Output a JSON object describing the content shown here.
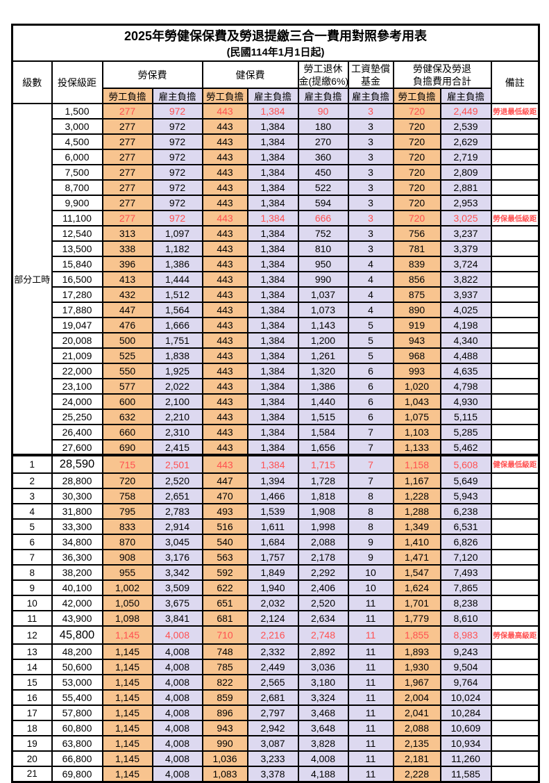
{
  "page": {
    "title": "2025年勞健保保費及勞退提繳三合一費用對照參考用表",
    "subtitle": "(民國114年1月1日起)"
  },
  "colors": {
    "employee_bg": "#F8C48F",
    "employer_bg": "#DDD9F0",
    "highlight_red": "#FF5050"
  },
  "header": {
    "level": "級數",
    "salary": "投保級距",
    "labor": "勞保費",
    "health": "健保費",
    "pension_line1": "勞工退休",
    "pension_line2": "金(提繳6%)",
    "wage_fund_line1": "工資墊償",
    "wage_fund_line2": "基金",
    "total_line1": "勞健保及勞退",
    "total_line2": "負擔費用合計",
    "remark": "備註",
    "employee": "勞工負擔",
    "employer": "雇主負擔"
  },
  "table": {
    "part_time_label": "部分工時",
    "rows": [
      {
        "level": "",
        "salary": "1,500",
        "values": [
          "277",
          "972",
          "443",
          "1,384",
          "90",
          "3",
          "720",
          "2,449"
        ],
        "remark": "勞退最低級距",
        "red": true,
        "big": false,
        "thick_top": false
      },
      {
        "level": "",
        "salary": "3,000",
        "values": [
          "277",
          "972",
          "443",
          "1,384",
          "180",
          "3",
          "720",
          "2,539"
        ],
        "remark": "",
        "red": false,
        "big": false,
        "thick_top": false
      },
      {
        "level": "",
        "salary": "4,500",
        "values": [
          "277",
          "972",
          "443",
          "1,384",
          "270",
          "3",
          "720",
          "2,629"
        ],
        "remark": "",
        "red": false,
        "big": false,
        "thick_top": false
      },
      {
        "level": "",
        "salary": "6,000",
        "values": [
          "277",
          "972",
          "443",
          "1,384",
          "360",
          "3",
          "720",
          "2,719"
        ],
        "remark": "",
        "red": false,
        "big": false,
        "thick_top": false
      },
      {
        "level": "",
        "salary": "7,500",
        "values": [
          "277",
          "972",
          "443",
          "1,384",
          "450",
          "3",
          "720",
          "2,809"
        ],
        "remark": "",
        "red": false,
        "big": false,
        "thick_top": false
      },
      {
        "level": "",
        "salary": "8,700",
        "values": [
          "277",
          "972",
          "443",
          "1,384",
          "522",
          "3",
          "720",
          "2,881"
        ],
        "remark": "",
        "red": false,
        "big": false,
        "thick_top": false
      },
      {
        "level": "",
        "salary": "9,900",
        "values": [
          "277",
          "972",
          "443",
          "1,384",
          "594",
          "3",
          "720",
          "2,953"
        ],
        "remark": "",
        "red": false,
        "big": false,
        "thick_top": false
      },
      {
        "level": "",
        "salary": "11,100",
        "values": [
          "277",
          "972",
          "443",
          "1,384",
          "666",
          "3",
          "720",
          "3,025"
        ],
        "remark": "勞保最低級距",
        "red": true,
        "big": false,
        "thick_top": false
      },
      {
        "level": "",
        "salary": "12,540",
        "values": [
          "313",
          "1,097",
          "443",
          "1,384",
          "752",
          "3",
          "756",
          "3,237"
        ],
        "remark": "",
        "red": false,
        "big": false,
        "thick_top": false
      },
      {
        "level": "",
        "salary": "13,500",
        "values": [
          "338",
          "1,182",
          "443",
          "1,384",
          "810",
          "3",
          "781",
          "3,379"
        ],
        "remark": "",
        "red": false,
        "big": false,
        "thick_top": false
      },
      {
        "level": "",
        "salary": "15,840",
        "values": [
          "396",
          "1,386",
          "443",
          "1,384",
          "950",
          "4",
          "839",
          "3,724"
        ],
        "remark": "",
        "red": false,
        "big": false,
        "thick_top": false
      },
      {
        "level": "",
        "salary": "16,500",
        "values": [
          "413",
          "1,444",
          "443",
          "1,384",
          "990",
          "4",
          "856",
          "3,822"
        ],
        "remark": "",
        "red": false,
        "big": false,
        "thick_top": false
      },
      {
        "level": "",
        "salary": "17,280",
        "values": [
          "432",
          "1,512",
          "443",
          "1,384",
          "1,037",
          "4",
          "875",
          "3,937"
        ],
        "remark": "",
        "red": false,
        "big": false,
        "thick_top": false
      },
      {
        "level": "",
        "salary": "17,880",
        "values": [
          "447",
          "1,564",
          "443",
          "1,384",
          "1,073",
          "4",
          "890",
          "4,025"
        ],
        "remark": "",
        "red": false,
        "big": false,
        "thick_top": false
      },
      {
        "level": "",
        "salary": "19,047",
        "values": [
          "476",
          "1,666",
          "443",
          "1,384",
          "1,143",
          "5",
          "919",
          "4,198"
        ],
        "remark": "",
        "red": false,
        "big": false,
        "thick_top": false
      },
      {
        "level": "",
        "salary": "20,008",
        "values": [
          "500",
          "1,751",
          "443",
          "1,384",
          "1,200",
          "5",
          "943",
          "4,340"
        ],
        "remark": "",
        "red": false,
        "big": false,
        "thick_top": false
      },
      {
        "level": "",
        "salary": "21,009",
        "values": [
          "525",
          "1,838",
          "443",
          "1,384",
          "1,261",
          "5",
          "968",
          "4,488"
        ],
        "remark": "",
        "red": false,
        "big": false,
        "thick_top": false
      },
      {
        "level": "",
        "salary": "22,000",
        "values": [
          "550",
          "1,925",
          "443",
          "1,384",
          "1,320",
          "6",
          "993",
          "4,635"
        ],
        "remark": "",
        "red": false,
        "big": false,
        "thick_top": false
      },
      {
        "level": "",
        "salary": "23,100",
        "values": [
          "577",
          "2,022",
          "443",
          "1,384",
          "1,386",
          "6",
          "1,020",
          "4,798"
        ],
        "remark": "",
        "red": false,
        "big": false,
        "thick_top": false
      },
      {
        "level": "",
        "salary": "24,000",
        "values": [
          "600",
          "2,100",
          "443",
          "1,384",
          "1,440",
          "6",
          "1,043",
          "4,930"
        ],
        "remark": "",
        "red": false,
        "big": false,
        "thick_top": false
      },
      {
        "level": "",
        "salary": "25,250",
        "values": [
          "632",
          "2,210",
          "443",
          "1,384",
          "1,515",
          "6",
          "1,075",
          "5,115"
        ],
        "remark": "",
        "red": false,
        "big": false,
        "thick_top": false
      },
      {
        "level": "",
        "salary": "26,400",
        "values": [
          "660",
          "2,310",
          "443",
          "1,384",
          "1,584",
          "7",
          "1,103",
          "5,285"
        ],
        "remark": "",
        "red": false,
        "big": false,
        "thick_top": false
      },
      {
        "level": "",
        "salary": "27,600",
        "values": [
          "690",
          "2,415",
          "443",
          "1,384",
          "1,656",
          "7",
          "1,133",
          "5,462"
        ],
        "remark": "",
        "red": false,
        "big": false,
        "thick_top": false
      },
      {
        "level": "1",
        "salary": "28,590",
        "values": [
          "715",
          "2,501",
          "443",
          "1,384",
          "1,715",
          "7",
          "1,158",
          "5,608"
        ],
        "remark": "健保最低級距",
        "red": true,
        "big": true,
        "thick_top": true
      },
      {
        "level": "2",
        "salary": "28,800",
        "values": [
          "720",
          "2,520",
          "447",
          "1,394",
          "1,728",
          "7",
          "1,167",
          "5,649"
        ],
        "remark": "",
        "red": false,
        "big": false,
        "thick_top": false
      },
      {
        "level": "3",
        "salary": "30,300",
        "values": [
          "758",
          "2,651",
          "470",
          "1,466",
          "1,818",
          "8",
          "1,228",
          "5,943"
        ],
        "remark": "",
        "red": false,
        "big": false,
        "thick_top": false
      },
      {
        "level": "4",
        "salary": "31,800",
        "values": [
          "795",
          "2,783",
          "493",
          "1,539",
          "1,908",
          "8",
          "1,288",
          "6,238"
        ],
        "remark": "",
        "red": false,
        "big": false,
        "thick_top": false
      },
      {
        "level": "5",
        "salary": "33,300",
        "values": [
          "833",
          "2,914",
          "516",
          "1,611",
          "1,998",
          "8",
          "1,349",
          "6,531"
        ],
        "remark": "",
        "red": false,
        "big": false,
        "thick_top": false
      },
      {
        "level": "6",
        "salary": "34,800",
        "values": [
          "870",
          "3,045",
          "540",
          "1,684",
          "2,088",
          "9",
          "1,410",
          "6,826"
        ],
        "remark": "",
        "red": false,
        "big": false,
        "thick_top": false
      },
      {
        "level": "7",
        "salary": "36,300",
        "values": [
          "908",
          "3,176",
          "563",
          "1,757",
          "2,178",
          "9",
          "1,471",
          "7,120"
        ],
        "remark": "",
        "red": false,
        "big": false,
        "thick_top": false
      },
      {
        "level": "8",
        "salary": "38,200",
        "values": [
          "955",
          "3,342",
          "592",
          "1,849",
          "2,292",
          "10",
          "1,547",
          "7,493"
        ],
        "remark": "",
        "red": false,
        "big": false,
        "thick_top": false
      },
      {
        "level": "9",
        "salary": "40,100",
        "values": [
          "1,002",
          "3,509",
          "622",
          "1,940",
          "2,406",
          "10",
          "1,624",
          "7,865"
        ],
        "remark": "",
        "red": false,
        "big": false,
        "thick_top": false
      },
      {
        "level": "10",
        "salary": "42,000",
        "values": [
          "1,050",
          "3,675",
          "651",
          "2,032",
          "2,520",
          "11",
          "1,701",
          "8,238"
        ],
        "remark": "",
        "red": false,
        "big": false,
        "thick_top": false
      },
      {
        "level": "11",
        "salary": "43,900",
        "values": [
          "1,098",
          "3,841",
          "681",
          "2,124",
          "2,634",
          "11",
          "1,779",
          "8,610"
        ],
        "remark": "",
        "red": false,
        "big": false,
        "thick_top": false
      },
      {
        "level": "12",
        "salary": "45,800",
        "values": [
          "1,145",
          "4,008",
          "710",
          "2,216",
          "2,748",
          "11",
          "1,855",
          "8,983"
        ],
        "remark": "勞保最高級距",
        "red": true,
        "big": true,
        "thick_top": false
      },
      {
        "level": "13",
        "salary": "48,200",
        "values": [
          "1,145",
          "4,008",
          "748",
          "2,332",
          "2,892",
          "11",
          "1,893",
          "9,243"
        ],
        "remark": "",
        "red": false,
        "big": false,
        "thick_top": false
      },
      {
        "level": "14",
        "salary": "50,600",
        "values": [
          "1,145",
          "4,008",
          "785",
          "2,449",
          "3,036",
          "11",
          "1,930",
          "9,504"
        ],
        "remark": "",
        "red": false,
        "big": false,
        "thick_top": false
      },
      {
        "level": "15",
        "salary": "53,000",
        "values": [
          "1,145",
          "4,008",
          "822",
          "2,565",
          "3,180",
          "11",
          "1,967",
          "9,764"
        ],
        "remark": "",
        "red": false,
        "big": false,
        "thick_top": false
      },
      {
        "level": "16",
        "salary": "55,400",
        "values": [
          "1,145",
          "4,008",
          "859",
          "2,681",
          "3,324",
          "11",
          "2,004",
          "10,024"
        ],
        "remark": "",
        "red": false,
        "big": false,
        "thick_top": false
      },
      {
        "level": "17",
        "salary": "57,800",
        "values": [
          "1,145",
          "4,008",
          "896",
          "2,797",
          "3,468",
          "11",
          "2,041",
          "10,284"
        ],
        "remark": "",
        "red": false,
        "big": false,
        "thick_top": false
      },
      {
        "level": "18",
        "salary": "60,800",
        "values": [
          "1,145",
          "4,008",
          "943",
          "2,942",
          "3,648",
          "11",
          "2,088",
          "10,609"
        ],
        "remark": "",
        "red": false,
        "big": false,
        "thick_top": false
      },
      {
        "level": "19",
        "salary": "63,800",
        "values": [
          "1,145",
          "4,008",
          "990",
          "3,087",
          "3,828",
          "11",
          "2,135",
          "10,934"
        ],
        "remark": "",
        "red": false,
        "big": false,
        "thick_top": false
      },
      {
        "level": "20",
        "salary": "66,800",
        "values": [
          "1,145",
          "4,008",
          "1,036",
          "3,233",
          "4,008",
          "11",
          "2,181",
          "11,260"
        ],
        "remark": "",
        "red": false,
        "big": false,
        "thick_top": false
      },
      {
        "level": "21",
        "salary": "69,800",
        "values": [
          "1,145",
          "4,008",
          "1,083",
          "3,378",
          "4,188",
          "11",
          "2,228",
          "11,585"
        ],
        "remark": "",
        "red": false,
        "big": false,
        "thick_top": false
      }
    ]
  }
}
